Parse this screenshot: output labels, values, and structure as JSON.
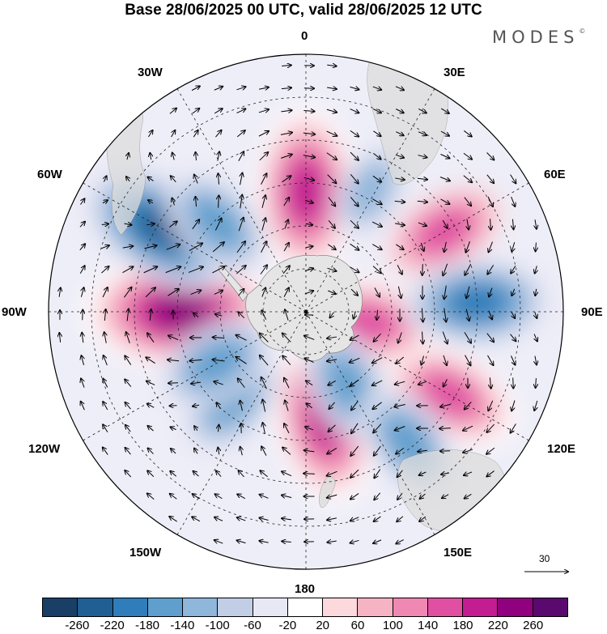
{
  "title": "Base 28/06/2025 00 UTC, valid 28/06/2025 12 UTC",
  "brand": {
    "text": "MODES",
    "mark": "©"
  },
  "longitude_labels": {
    "top": "0",
    "top_right": "30E",
    "upper_right": "60E",
    "right": "90E",
    "lower_right": "120E",
    "bottom_right": "150E",
    "bottom": "180",
    "bottom_left": "150W",
    "lower_left": "120W",
    "left": "90W",
    "upper_left": "60W",
    "top_left": "30W"
  },
  "wind_reference": {
    "value": "30"
  },
  "colorbar": {
    "colors": [
      "#1a3f66",
      "#1f5f94",
      "#2f7dba",
      "#5f9fcd",
      "#8fb6db",
      "#c2cde6",
      "#e8e8f4",
      "#ffffff",
      "#fbd9dd",
      "#f6b3c4",
      "#ef88b2",
      "#e04fa2",
      "#c21d91",
      "#91007f",
      "#5a0a6e"
    ],
    "ticks": [
      "-260",
      "-220",
      "-180",
      "-140",
      "-100",
      "-60",
      "-20",
      "20",
      "60",
      "100",
      "140",
      "180",
      "220",
      "260"
    ]
  },
  "anomaly_centers": [
    {
      "lon": -90,
      "colat": 44,
      "value": 260
    },
    {
      "lon": 0,
      "colat": 42,
      "value": 220
    },
    {
      "lon": 60,
      "colat": 56,
      "value": 160
    },
    {
      "lon": 120,
      "colat": 58,
      "value": 180
    },
    {
      "lon": 100,
      "colat": 22,
      "value": 180
    },
    {
      "lon": 170,
      "colat": 38,
      "value": 220
    },
    {
      "lon": -60,
      "colat": 58,
      "value": -240
    },
    {
      "lon": -45,
      "colat": 44,
      "value": -160
    },
    {
      "lon": 28,
      "colat": 48,
      "value": -120
    },
    {
      "lon": 87,
      "colat": 60,
      "value": -200
    },
    {
      "lon": -140,
      "colat": 40,
      "value": -160
    },
    {
      "lon": -120,
      "colat": 36,
      "value": -140
    },
    {
      "lon": 150,
      "colat": 30,
      "value": -160
    },
    {
      "lon": 142,
      "colat": 58,
      "value": -170
    }
  ]
}
